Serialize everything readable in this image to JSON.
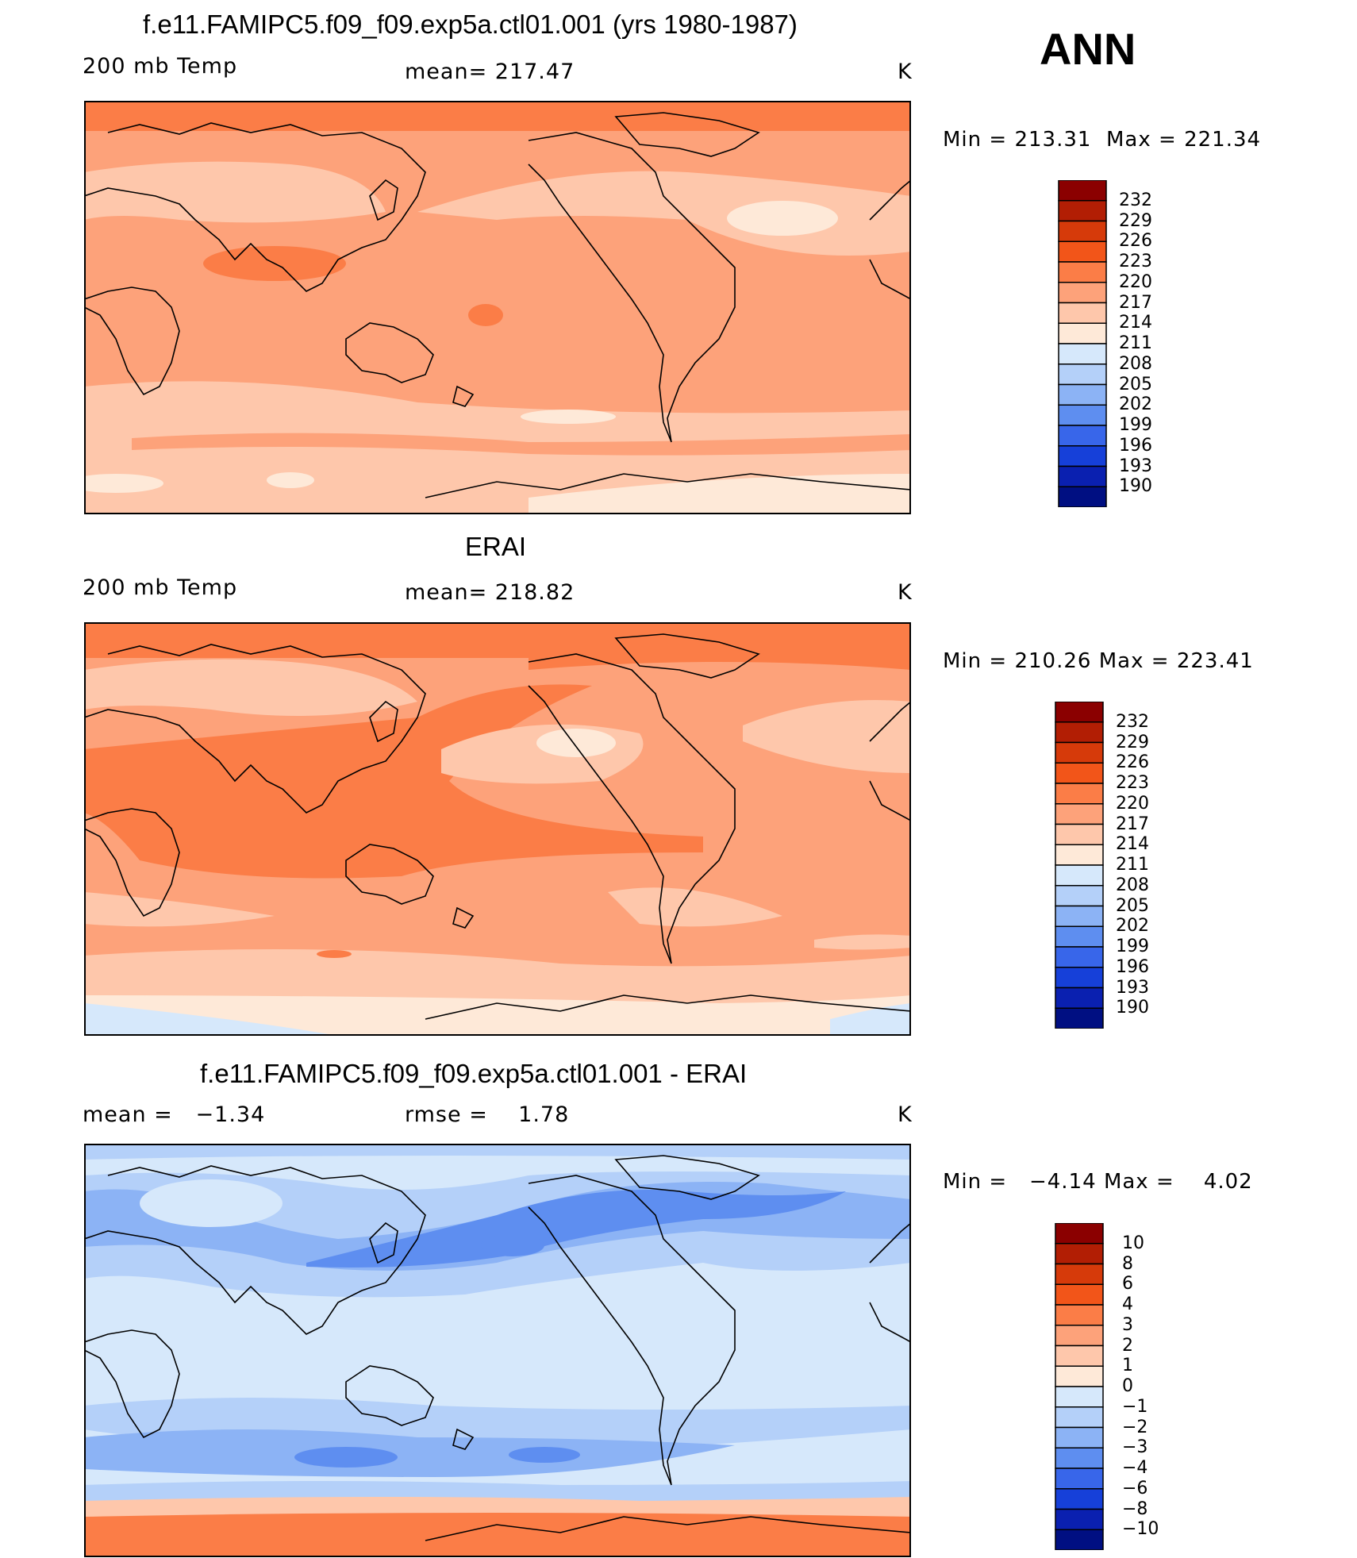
{
  "header": {
    "season": "ANN"
  },
  "panels": [
    {
      "id": "model",
      "title": "f.e11.FAMIPC5.f09_f09.exp5a.ctl01.001 (yrs 1980-1987)",
      "left": "200 mb Temp",
      "center": "mean= 217.47",
      "unit": "K",
      "minmax": {
        "min_label": "Min",
        "min": "213.31",
        "max_label": "Max",
        "max": "221.34"
      },
      "colorbar_levels": [
        "232",
        "229",
        "226",
        "223",
        "220",
        "217",
        "214",
        "211",
        "208",
        "205",
        "202",
        "199",
        "196",
        "193",
        "190"
      ],
      "colorbar_colors": [
        "#8b0000",
        "#b21e04",
        "#d63a0a",
        "#f25519",
        "#fb7d47",
        "#fda27a",
        "#fec7ab",
        "#fee9d8",
        "#d6e8fb",
        "#b4d0f9",
        "#8cb3f5",
        "#5e8ef0",
        "#3866ea",
        "#1640d9",
        "#0a20b0",
        "#000f82"
      ],
      "map_colors": {
        "base": "#fda27a",
        "light": "#fec7ab",
        "lighter": "#fee9d8",
        "warm": "#fb7d47"
      }
    },
    {
      "id": "obs",
      "title": "ERAI",
      "left": "200 mb Temp",
      "center": "mean= 218.82",
      "unit": "K",
      "minmax": {
        "min_label": "Min",
        "min": "210.26",
        "max_label": "Max",
        "max": "223.41"
      },
      "colorbar_levels": [
        "232",
        "229",
        "226",
        "223",
        "220",
        "217",
        "214",
        "211",
        "208",
        "205",
        "202",
        "199",
        "196",
        "193",
        "190"
      ],
      "colorbar_colors": [
        "#8b0000",
        "#b21e04",
        "#d63a0a",
        "#f25519",
        "#fb7d47",
        "#fda27a",
        "#fec7ab",
        "#fee9d8",
        "#d6e8fb",
        "#b4d0f9",
        "#8cb3f5",
        "#5e8ef0",
        "#3866ea",
        "#1640d9",
        "#0a20b0",
        "#000f82"
      ],
      "map_colors": {
        "base": "#fda27a",
        "light": "#fec7ab",
        "lighter": "#fee9d8",
        "warm": "#fb7d47",
        "cold": "#d6e8fb"
      }
    },
    {
      "id": "diff",
      "title": "f.e11.FAMIPC5.f09_f09.exp5a.ctl01.001 - ERAI",
      "left": "mean =   −1.34",
      "center": "rmse =    1.78",
      "unit": "K",
      "minmax": {
        "min_label": "Min",
        "min": "−4.14",
        "max_label": "Max",
        "max": "4.02"
      },
      "colorbar_levels": [
        "10",
        "8",
        "6",
        "4",
        "3",
        "2",
        "1",
        "0",
        "−1",
        "−2",
        "−3",
        "−4",
        "−6",
        "−8",
        "−10"
      ],
      "colorbar_colors": [
        "#8b0000",
        "#b21e04",
        "#d63a0a",
        "#f25519",
        "#fb7d47",
        "#fda27a",
        "#fec7ab",
        "#fee9d8",
        "#d6e8fb",
        "#b4d0f9",
        "#8cb3f5",
        "#5e8ef0",
        "#3866ea",
        "#1640d9",
        "#0a20b0",
        "#000f82"
      ],
      "map_colors": {
        "base": "#d6e8fb",
        "mid": "#b4d0f9",
        "deep": "#8cb3f5",
        "deeper": "#5e8ef0",
        "warmedge": "#fb7d47",
        "paleedge": "#fec7ab"
      }
    }
  ]
}
